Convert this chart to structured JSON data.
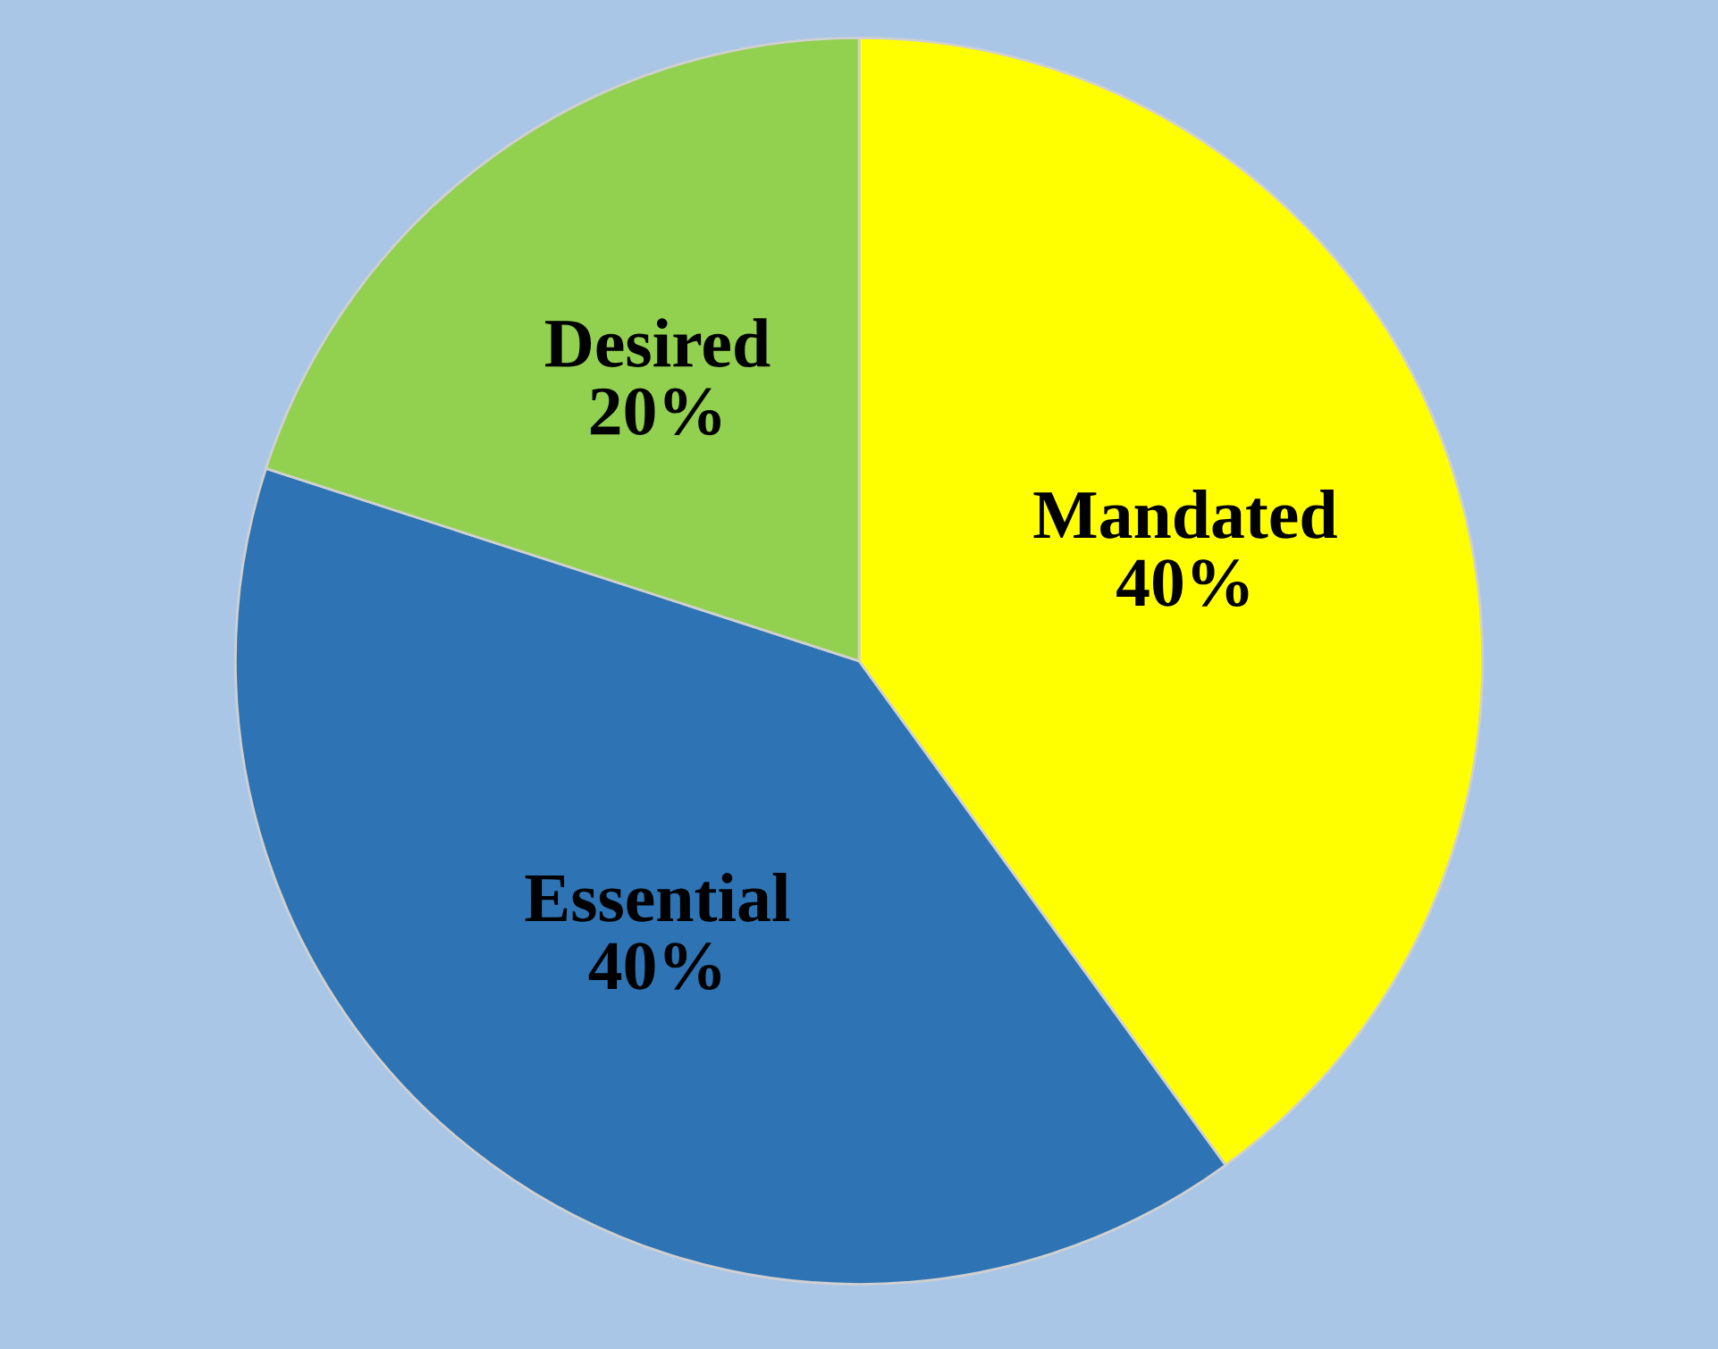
{
  "chart_data": {
    "type": "pie",
    "categories": [
      "Mandated",
      "Essential",
      "Desired"
    ],
    "values": [
      40,
      40,
      20
    ],
    "colors": [
      "#ffff00",
      "#2e74b5",
      "#92d050"
    ],
    "value_labels": [
      "40%",
      "40%",
      "20%"
    ]
  }
}
